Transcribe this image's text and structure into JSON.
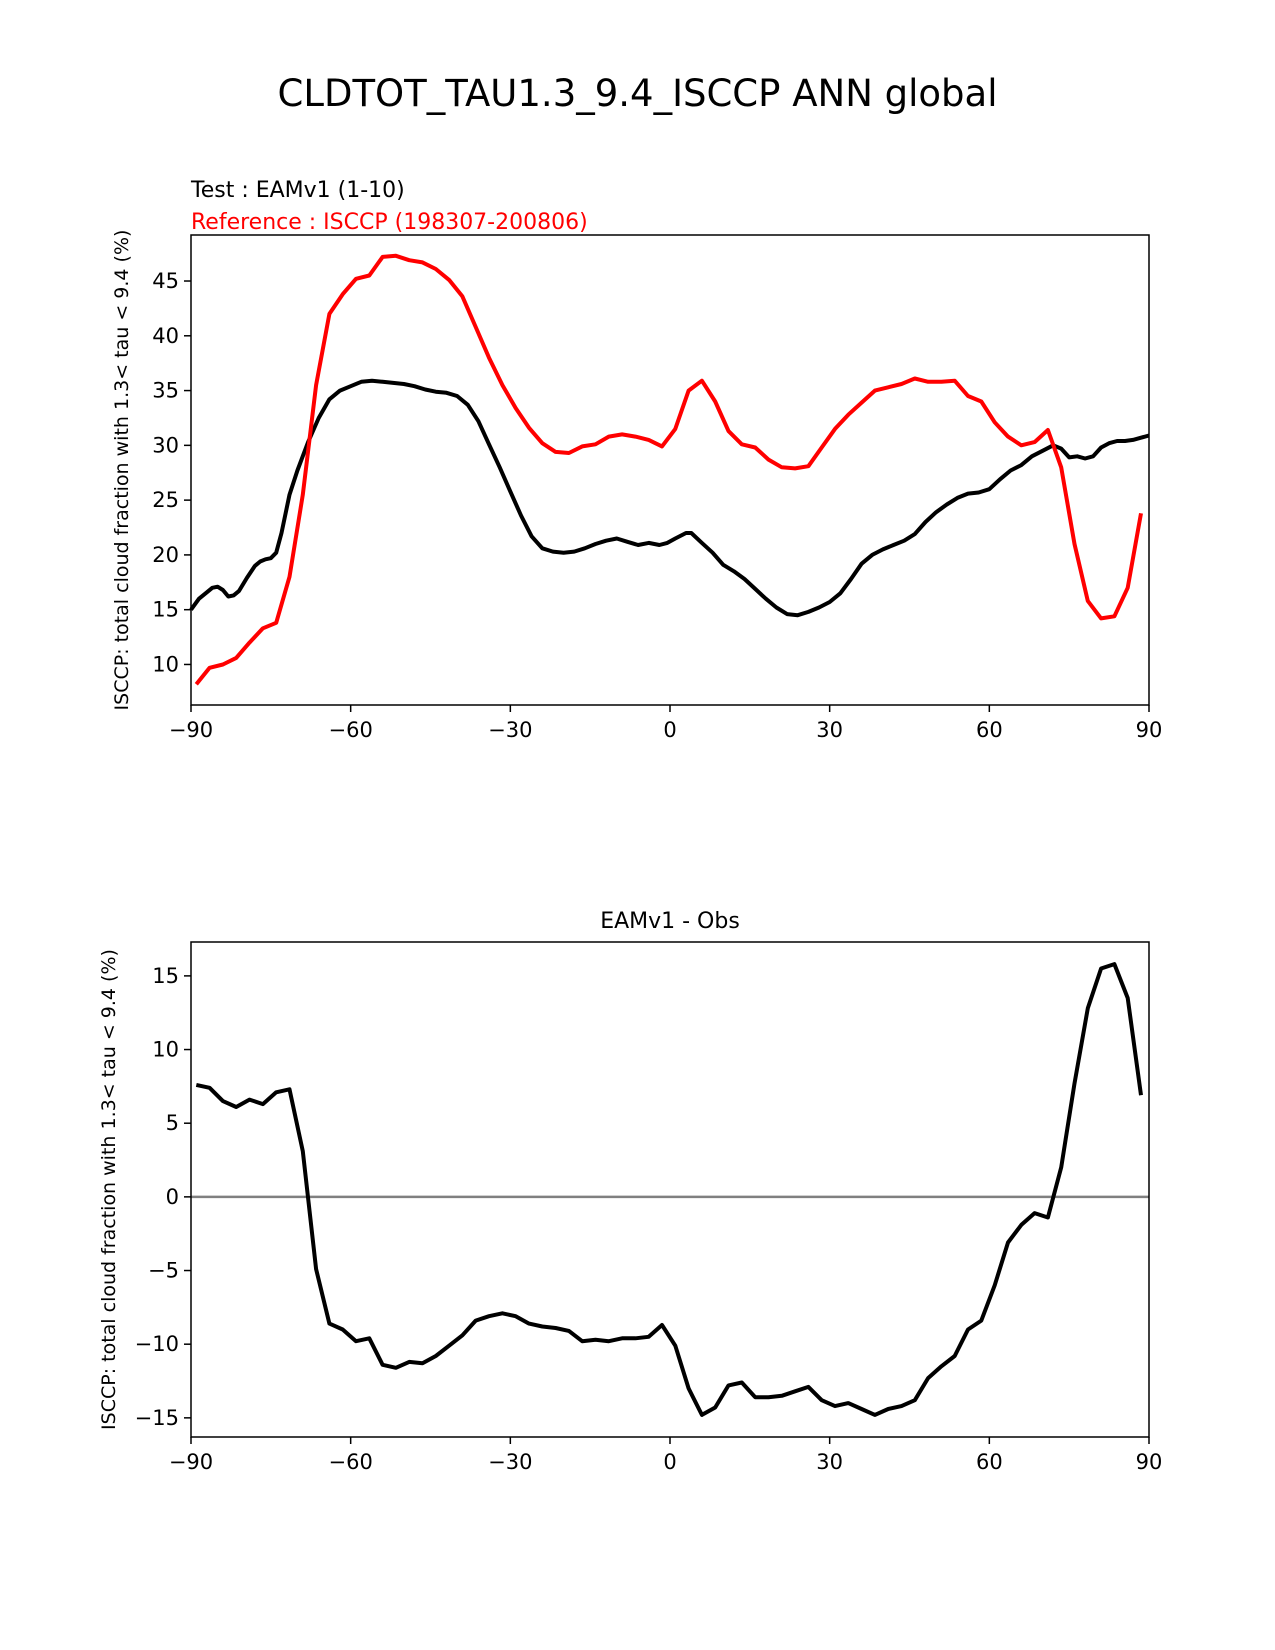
{
  "figure": {
    "title": "CLDTOT_TAU1.3_9.4_ISCCP ANN global"
  },
  "chart_data": [
    {
      "type": "line",
      "title": "",
      "title_lines": [
        {
          "text": "Test : EAMv1 (1-10)",
          "color": "#000000"
        },
        {
          "text": "Reference : ISCCP (198307-200806)",
          "color": "#ff0000"
        }
      ],
      "xlabel": "",
      "ylabel": "ISCCP: total cloud fraction with 1.3< tau < 9.4 (%)",
      "xlim": [
        -90,
        90
      ],
      "ylim": [
        6.3,
        49.2
      ],
      "xticks": [
        -90,
        -60,
        -30,
        0,
        30,
        60,
        90
      ],
      "xtick_labels": [
        "−90",
        "−60",
        "−30",
        "0",
        "30",
        "60",
        "90"
      ],
      "yticks": [
        10,
        15,
        20,
        25,
        30,
        35,
        40,
        45
      ],
      "ytick_labels": [
        "10",
        "15",
        "20",
        "25",
        "30",
        "35",
        "40",
        "45"
      ],
      "grid": false,
      "legend": "none",
      "series": [
        {
          "color": "#000000",
          "x": [
            -90,
            -88.5,
            -87,
            -86,
            -85,
            -84,
            -83,
            -82,
            -81,
            -79.5,
            -78,
            -77,
            -76,
            -75,
            -74,
            -73,
            -71.5,
            -70,
            -68,
            -66,
            -64,
            -62,
            -60,
            -58,
            -56,
            -54,
            -52,
            -50,
            -48,
            -46,
            -44,
            -42,
            -40,
            -38,
            -36,
            -34,
            -32,
            -30,
            -28,
            -26,
            -24,
            -22,
            -20,
            -18,
            -16,
            -14,
            -12,
            -10,
            -8,
            -6,
            -4,
            -2,
            -0.5,
            1,
            3,
            4,
            6,
            8,
            10,
            12,
            14,
            16,
            18,
            20,
            22,
            24,
            26,
            28,
            30,
            32,
            34,
            36,
            38,
            40,
            42,
            44,
            46,
            48,
            50,
            52,
            54,
            56,
            58,
            60,
            62,
            64,
            66,
            68,
            70,
            72,
            73.5,
            75,
            76.5,
            78,
            79.5,
            81,
            82.5,
            84,
            85.5,
            87,
            88.5,
            90
          ],
          "y": [
            15.0,
            16.0,
            16.6,
            17.0,
            17.1,
            16.8,
            16.2,
            16.3,
            16.7,
            17.9,
            19.0,
            19.4,
            19.6,
            19.7,
            20.2,
            22.0,
            25.5,
            27.7,
            30.3,
            32.5,
            34.2,
            35.0,
            35.4,
            35.8,
            35.9,
            35.8,
            35.7,
            35.6,
            35.4,
            35.1,
            34.9,
            34.8,
            34.5,
            33.7,
            32.2,
            30.1,
            28.0,
            25.8,
            23.6,
            21.7,
            20.6,
            20.3,
            20.2,
            20.3,
            20.6,
            21.0,
            21.3,
            21.5,
            21.2,
            20.9,
            21.1,
            20.9,
            21.1,
            21.5,
            22.0,
            22.0,
            21.1,
            20.2,
            19.1,
            18.5,
            17.8,
            16.9,
            16.0,
            15.2,
            14.6,
            14.5,
            14.8,
            15.2,
            15.7,
            16.5,
            17.8,
            19.2,
            20.0,
            20.5,
            20.9,
            21.3,
            21.9,
            23.0,
            23.9,
            24.6,
            25.2,
            25.6,
            25.7,
            26.0,
            26.9,
            27.7,
            28.2,
            29.0,
            29.5,
            30.0,
            29.7,
            28.9,
            29.0,
            28.8,
            29.0,
            29.8,
            30.2,
            30.4,
            30.4,
            30.5,
            30.7,
            30.9
          ]
        },
        {
          "color": "#ff0000",
          "x": [
            -89,
            -86.5,
            -84,
            -81.5,
            -79,
            -76.5,
            -74,
            -71.5,
            -69,
            -66.5,
            -64,
            -61.5,
            -59,
            -56.5,
            -54,
            -51.5,
            -49,
            -46.5,
            -44,
            -41.5,
            -39,
            -36.5,
            -34,
            -31.5,
            -29,
            -26.5,
            -24,
            -21.5,
            -19,
            -16.5,
            -14,
            -11.5,
            -9,
            -6.5,
            -4,
            -1.5,
            1,
            3.5,
            6,
            8.5,
            11,
            13.5,
            16,
            18.5,
            21,
            23.5,
            26,
            28.5,
            31,
            33.5,
            36,
            38.5,
            41,
            43.5,
            46,
            48.5,
            51,
            53.5,
            56,
            58.5,
            61,
            63.5,
            66,
            68.5,
            71,
            73.5,
            76,
            78.5,
            81,
            83.5,
            86,
            88.5
          ],
          "y": [
            8.2,
            9.7,
            10.0,
            10.6,
            12.0,
            13.3,
            13.8,
            18.0,
            25.5,
            35.5,
            42.0,
            43.8,
            45.2,
            45.5,
            47.2,
            47.3,
            46.9,
            46.7,
            46.1,
            45.1,
            43.6,
            40.8,
            38.0,
            35.5,
            33.4,
            31.6,
            30.2,
            29.4,
            29.3,
            29.9,
            30.1,
            30.8,
            31.0,
            30.8,
            30.5,
            29.9,
            31.5,
            35.0,
            35.9,
            34.0,
            31.3,
            30.1,
            29.8,
            28.7,
            28.0,
            27.9,
            28.1,
            29.8,
            31.5,
            32.8,
            33.9,
            35.0,
            35.3,
            35.6,
            36.1,
            35.8,
            35.8,
            35.9,
            34.5,
            34.0,
            32.1,
            30.8,
            30.0,
            30.3,
            31.4,
            28.0,
            21.0,
            15.8,
            14.2,
            14.4,
            17.0,
            23.8
          ]
        }
      ]
    },
    {
      "type": "line",
      "title": "EAMv1 - Obs",
      "xlabel": "",
      "ylabel": "ISCCP: total cloud fraction with 1.3< tau < 9.4 (%)",
      "xlim": [
        -90,
        90
      ],
      "ylim": [
        -16.3,
        17.3
      ],
      "xticks": [
        -90,
        -60,
        -30,
        0,
        30,
        60,
        90
      ],
      "xtick_labels": [
        "−90",
        "−60",
        "−30",
        "0",
        "30",
        "60",
        "90"
      ],
      "yticks": [
        -15,
        -10,
        -5,
        0,
        5,
        10,
        15
      ],
      "ytick_labels": [
        "−15",
        "−10",
        "−5",
        "0",
        "5",
        "10",
        "15"
      ],
      "grid": false,
      "legend": "none",
      "reference_line": {
        "y": 0,
        "color": "#808080"
      },
      "series": [
        {
          "color": "#000000",
          "x": [
            -89,
            -86.5,
            -84,
            -81.5,
            -79,
            -76.5,
            -74,
            -71.5,
            -69,
            -66.5,
            -64,
            -61.5,
            -59,
            -56.5,
            -54,
            -51.5,
            -49,
            -46.5,
            -44,
            -41.5,
            -39,
            -36.5,
            -34,
            -31.5,
            -29,
            -26.5,
            -24,
            -21.5,
            -19,
            -16.5,
            -14,
            -11.5,
            -9,
            -6.5,
            -4,
            -1.5,
            1,
            3.5,
            6,
            8.5,
            11,
            13.5,
            16,
            18.5,
            21,
            23.5,
            26,
            28.5,
            31,
            33.5,
            36,
            38.5,
            41,
            43.5,
            46,
            48.5,
            51,
            53.5,
            56,
            58.5,
            61,
            63.5,
            66,
            68.5,
            71,
            73.5,
            76,
            78.5,
            81,
            83.5,
            86,
            88.5
          ],
          "y": [
            7.6,
            7.4,
            6.5,
            6.1,
            6.6,
            6.3,
            7.1,
            7.3,
            3.1,
            -4.9,
            -8.6,
            -9.0,
            -9.8,
            -9.6,
            -11.4,
            -11.6,
            -11.2,
            -11.3,
            -10.8,
            -10.1,
            -9.4,
            -8.4,
            -8.1,
            -7.9,
            -8.1,
            -8.6,
            -8.8,
            -8.9,
            -9.1,
            -9.8,
            -9.7,
            -9.8,
            -9.6,
            -9.6,
            -9.5,
            -8.7,
            -10.1,
            -13.0,
            -14.8,
            -14.3,
            -12.8,
            -12.6,
            -13.6,
            -13.6,
            -13.5,
            -13.2,
            -12.9,
            -13.8,
            -14.2,
            -14.0,
            -14.4,
            -14.8,
            -14.4,
            -14.2,
            -13.8,
            -12.3,
            -11.5,
            -10.8,
            -9.0,
            -8.4,
            -6.0,
            -3.1,
            -1.9,
            -1.1,
            -1.4,
            2.0,
            7.7,
            12.8,
            15.5,
            15.8,
            13.5,
            6.9
          ]
        }
      ]
    }
  ]
}
